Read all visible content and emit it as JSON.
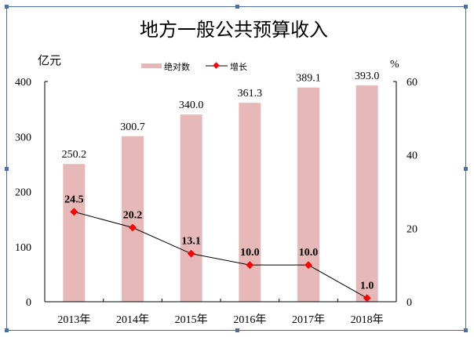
{
  "chart_data": {
    "type": "bar+line",
    "title": "地方一般公共预算收入",
    "categories": [
      "2013年",
      "2014年",
      "2015年",
      "2016年",
      "2017年",
      "2018年"
    ],
    "series": [
      {
        "name": "绝对数",
        "type": "bar",
        "axis": "left",
        "color": "#e6b9b8",
        "values": [
          250.2,
          300.7,
          340.0,
          361.3,
          389.1,
          393.0
        ],
        "labels": [
          "250.2",
          "300.7",
          "340.0",
          "361.3",
          "389.1",
          "393.0"
        ]
      },
      {
        "name": "增长",
        "type": "line",
        "axis": "right",
        "color": "#ff0000",
        "line_color": "#000000",
        "values": [
          24.5,
          20.2,
          13.1,
          10.0,
          10.0,
          1.0
        ],
        "labels": [
          "24.5",
          "20.2",
          "13.1",
          "10.0",
          "10.0",
          "1.0"
        ]
      }
    ],
    "ylabel_left": "亿元",
    "ylim_left": [
      0,
      400
    ],
    "yticks_left": [
      "0",
      "100",
      "200",
      "300",
      "400"
    ],
    "ylabel_right": "%",
    "ylim_right": [
      0,
      60
    ],
    "yticks_right": [
      "0",
      "20",
      "40",
      "60"
    ],
    "legend": "top",
    "grid": false
  }
}
